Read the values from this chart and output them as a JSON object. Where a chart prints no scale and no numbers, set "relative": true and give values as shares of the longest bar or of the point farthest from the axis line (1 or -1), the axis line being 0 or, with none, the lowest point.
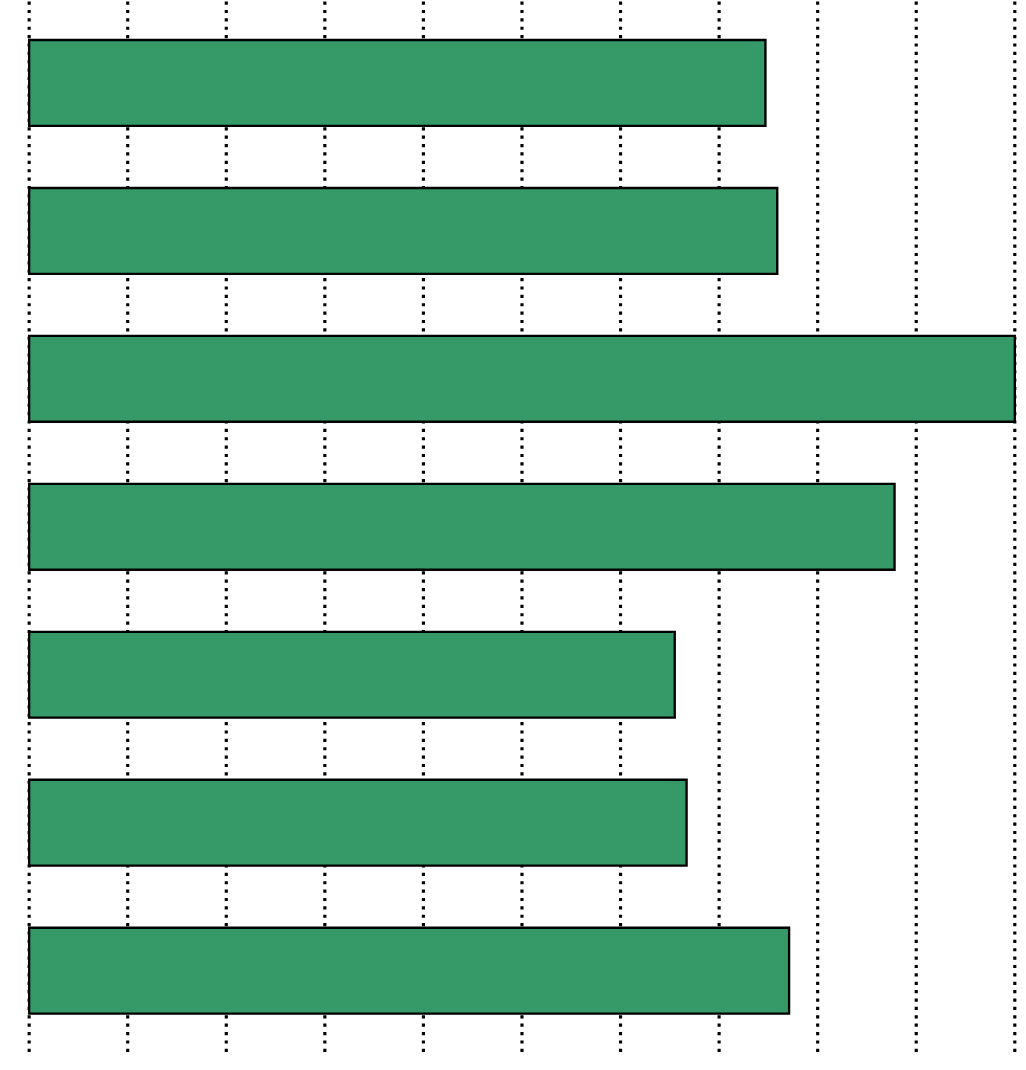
{
  "chart_data": {
    "type": "bar",
    "orientation": "horizontal",
    "relative": true,
    "grid": "x",
    "categories": [
      null,
      null,
      null,
      null,
      null,
      null,
      null
    ],
    "values": [
      0.747,
      0.759,
      1,
      0.878,
      0.655,
      0.667,
      0.771
    ],
    "color": "#359a68"
  }
}
